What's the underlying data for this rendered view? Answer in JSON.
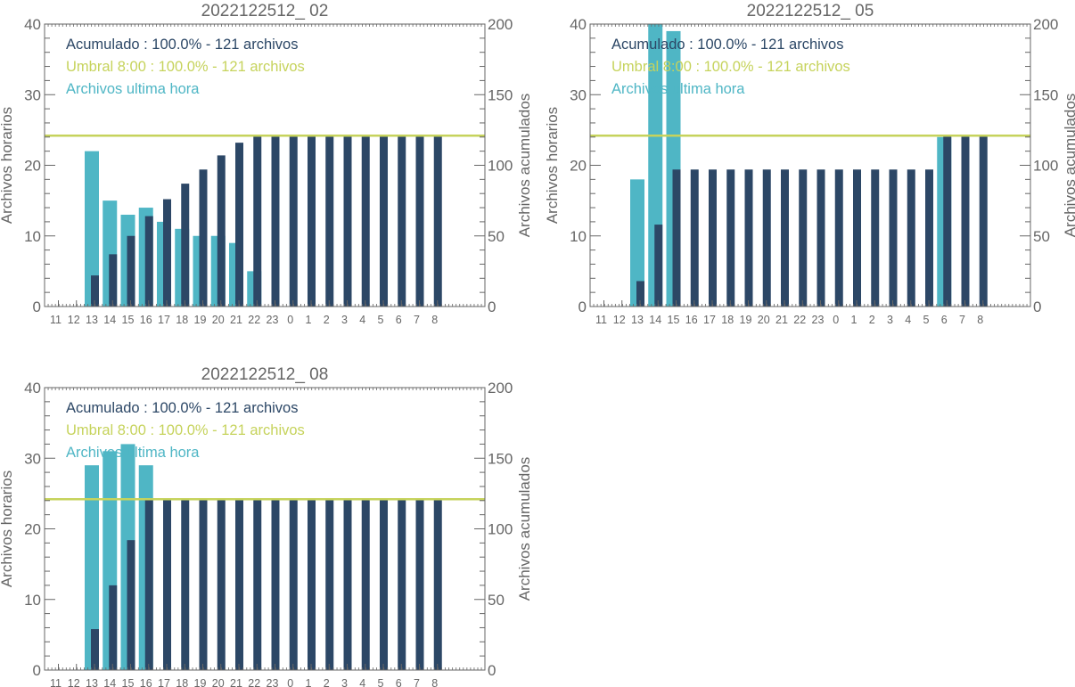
{
  "colors": {
    "cumulative": "#2c4766",
    "hourly": "#4fb6c5",
    "threshold": "#c6d35c",
    "axis": "#666666",
    "text": "#666666"
  },
  "chart_data": [
    {
      "type": "bar",
      "title": "2022122512_ 02",
      "ylabel": "Archivos horarios",
      "ylabel_right": "Archivos acumulados",
      "ylim": [
        0,
        40
      ],
      "ylim_right": [
        0,
        200
      ],
      "yticks": [
        0,
        10,
        20,
        30,
        40
      ],
      "yticks_right": [
        0,
        50,
        100,
        150,
        200
      ],
      "categories": [
        "11",
        "12",
        "13",
        "14",
        "15",
        "16",
        "17",
        "18",
        "19",
        "20",
        "21",
        "22",
        "23",
        "0",
        "1",
        "2",
        "3",
        "4",
        "5",
        "6",
        "7",
        "8"
      ],
      "series": [
        {
          "name": "Archivos ultima hora",
          "axis": "left",
          "values": [
            0,
            0,
            22,
            15,
            13,
            14,
            12,
            11,
            10,
            10,
            9,
            5,
            0,
            0,
            0,
            0,
            0,
            0,
            0,
            0,
            0,
            0
          ]
        },
        {
          "name": "Acumulado",
          "axis": "right",
          "values": [
            0,
            0,
            22,
            37,
            50,
            64,
            76,
            87,
            97,
            107,
            116,
            121,
            121,
            121,
            121,
            121,
            121,
            121,
            121,
            121,
            121,
            121
          ]
        }
      ],
      "threshold": {
        "axis": "right",
        "value": 121
      },
      "legend": [
        {
          "text": "Acumulado : 100.0% - 121 archivos",
          "color": "cumulative"
        },
        {
          "text": "Umbral 8:00 : 100.0% - 121 archivos",
          "color": "threshold"
        },
        {
          "text": "Archivos ultima hora",
          "color": "hourly"
        }
      ],
      "legend_position": "top-left",
      "grid": false
    },
    {
      "type": "bar",
      "title": "2022122512_ 05",
      "ylabel": "Archivos horarios",
      "ylabel_right": "Archivos acumulados",
      "ylim": [
        0,
        40
      ],
      "ylim_right": [
        0,
        200
      ],
      "yticks": [
        0,
        10,
        20,
        30,
        40
      ],
      "yticks_right": [
        0,
        50,
        100,
        150,
        200
      ],
      "categories": [
        "11",
        "12",
        "13",
        "14",
        "15",
        "16",
        "17",
        "18",
        "19",
        "20",
        "21",
        "22",
        "23",
        "0",
        "1",
        "2",
        "3",
        "4",
        "5",
        "6",
        "7",
        "8"
      ],
      "series": [
        {
          "name": "Archivos ultima hora",
          "axis": "left",
          "values": [
            0,
            0,
            18,
            40,
            39,
            0,
            0,
            0,
            0,
            0,
            0,
            0,
            0,
            0,
            0,
            0,
            0,
            0,
            0,
            24,
            0,
            0
          ]
        },
        {
          "name": "Acumulado",
          "axis": "right",
          "values": [
            0,
            0,
            18,
            58,
            97,
            97,
            97,
            97,
            97,
            97,
            97,
            97,
            97,
            97,
            97,
            97,
            97,
            97,
            97,
            121,
            121,
            121
          ]
        }
      ],
      "threshold": {
        "axis": "right",
        "value": 121
      },
      "legend": [
        {
          "text": "Acumulado : 100.0% - 121 archivos",
          "color": "cumulative"
        },
        {
          "text": "Umbral 8:00 : 100.0% - 121 archivos",
          "color": "threshold"
        },
        {
          "text": "Archivos ultima hora",
          "color": "hourly"
        }
      ],
      "legend_position": "top-left",
      "grid": false
    },
    {
      "type": "bar",
      "title": "2022122512_ 08",
      "ylabel": "Archivos horarios",
      "ylabel_right": "Archivos acumulados",
      "ylim": [
        0,
        40
      ],
      "ylim_right": [
        0,
        200
      ],
      "yticks": [
        0,
        10,
        20,
        30,
        40
      ],
      "yticks_right": [
        0,
        50,
        100,
        150,
        200
      ],
      "categories": [
        "11",
        "12",
        "13",
        "14",
        "15",
        "16",
        "17",
        "18",
        "19",
        "20",
        "21",
        "22",
        "23",
        "0",
        "1",
        "2",
        "3",
        "4",
        "5",
        "6",
        "7",
        "8"
      ],
      "series": [
        {
          "name": "Archivos ultima hora",
          "axis": "left",
          "values": [
            0,
            0,
            29,
            31,
            32,
            29,
            0,
            0,
            0,
            0,
            0,
            0,
            0,
            0,
            0,
            0,
            0,
            0,
            0,
            0,
            0,
            0
          ]
        },
        {
          "name": "Acumulado",
          "axis": "right",
          "values": [
            0,
            0,
            29,
            60,
            92,
            121,
            121,
            121,
            121,
            121,
            121,
            121,
            121,
            121,
            121,
            121,
            121,
            121,
            121,
            121,
            121,
            121
          ]
        }
      ],
      "threshold": {
        "axis": "right",
        "value": 121
      },
      "legend": [
        {
          "text": "Acumulado : 100.0% - 121 archivos",
          "color": "cumulative"
        },
        {
          "text": "Umbral 8:00 : 100.0% - 121 archivos",
          "color": "threshold"
        },
        {
          "text": "Archivos ultima hora",
          "color": "hourly"
        }
      ],
      "legend_position": "top-left",
      "grid": false
    }
  ]
}
